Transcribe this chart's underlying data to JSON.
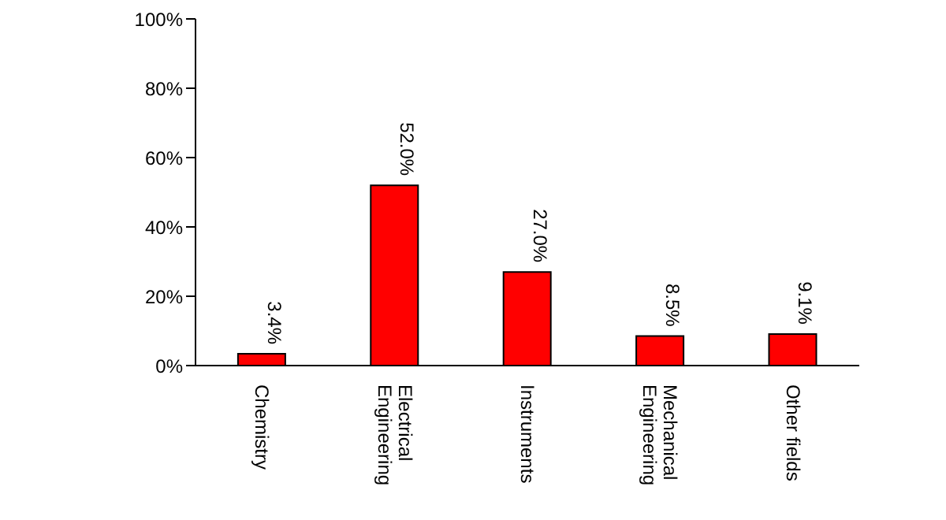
{
  "chart_data": {
    "type": "bar",
    "categories": [
      "Chemistry",
      "Electrical Engineering",
      "Instruments",
      "Mechanical Engineering",
      "Other fields"
    ],
    "values": [
      3.4,
      52.0,
      27.0,
      8.5,
      9.1
    ],
    "value_labels": [
      "3.4%",
      "52.0%",
      "27.0%",
      "8.5%",
      "9.1%"
    ],
    "color": "#ff0000",
    "ylim": [
      0,
      100
    ],
    "yticks": [
      {
        "value": 0,
        "label": "0%"
      },
      {
        "value": 20,
        "label": "20%"
      },
      {
        "value": 40,
        "label": "40%"
      },
      {
        "value": 60,
        "label": "60%"
      },
      {
        "value": 80,
        "label": "80%"
      },
      {
        "value": 100,
        "label": "100%"
      }
    ]
  }
}
